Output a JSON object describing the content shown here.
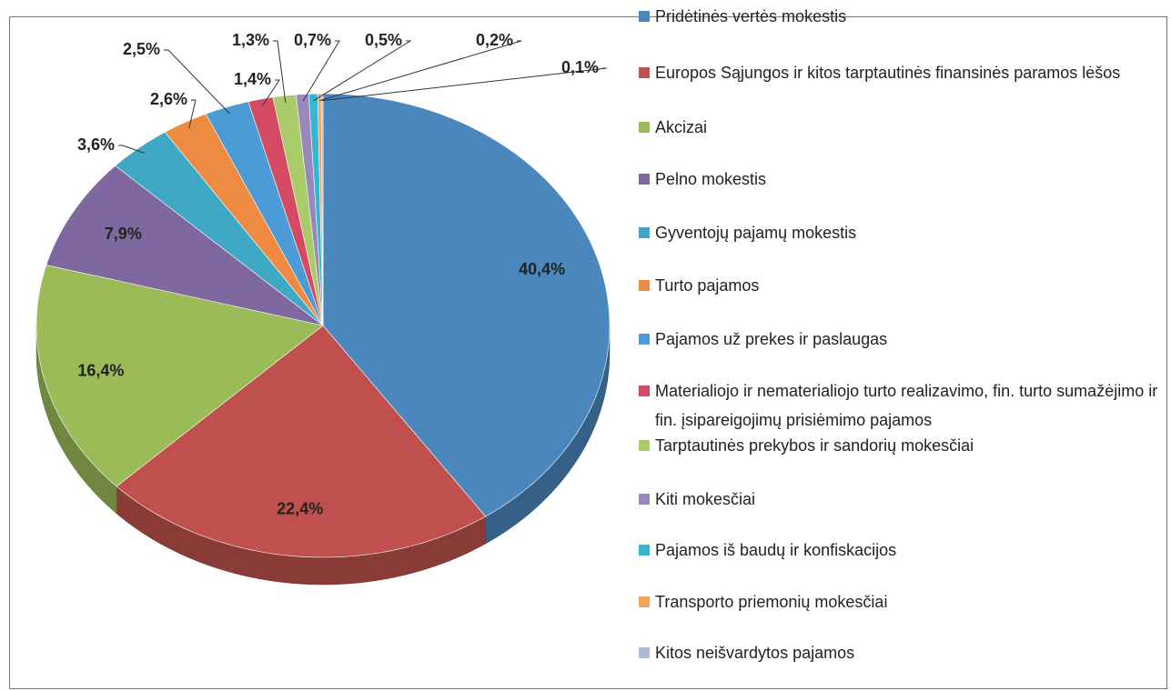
{
  "chart_data": {
    "type": "pie",
    "categories": [
      "Pridėtinės vertės mokestis",
      "Europos Sąjungos ir kitos tarptautinės finansinės paramos lėšos",
      "Akcizai",
      "Pelno mokestis",
      "Gyventojų pajamų mokestis",
      "Turto pajamos",
      "Pajamos už prekes ir paslaugas",
      "Materialiojo ir nematerialiojo turto realizavimo, fin. turto sumažėjimo ir fin. įsipareigojimų prisiėmimo pajamos",
      "Tarptautinės prekybos ir sandorių mokesčiai",
      "Kiti mokesčiai",
      "Pajamos iš baudų ir konfiskacijos",
      "Transporto priemonių mokesčiai",
      "Kitos neišvardytos pajamos"
    ],
    "values": [
      40.4,
      22.4,
      16.4,
      7.9,
      3.6,
      2.6,
      2.5,
      1.4,
      1.3,
      0.7,
      0.5,
      0.2,
      0.1
    ],
    "value_labels": [
      "40,4%",
      "22,4%",
      "16,4%",
      "7,9%",
      "3,6%",
      "2,6%",
      "2,5%",
      "1,4%",
      "1,3%",
      "0,7%",
      "0,5%",
      "0,2%",
      "0,1%"
    ],
    "colors": [
      "#4a87bd",
      "#c0504d",
      "#9bbb59",
      "#7f68a0",
      "#3fa8c4",
      "#ef8a43",
      "#4b9bd6",
      "#d44a62",
      "#a8cc6a",
      "#9a88bd",
      "#35b6d2",
      "#f5a35c",
      "#a9bcd6"
    ]
  }
}
